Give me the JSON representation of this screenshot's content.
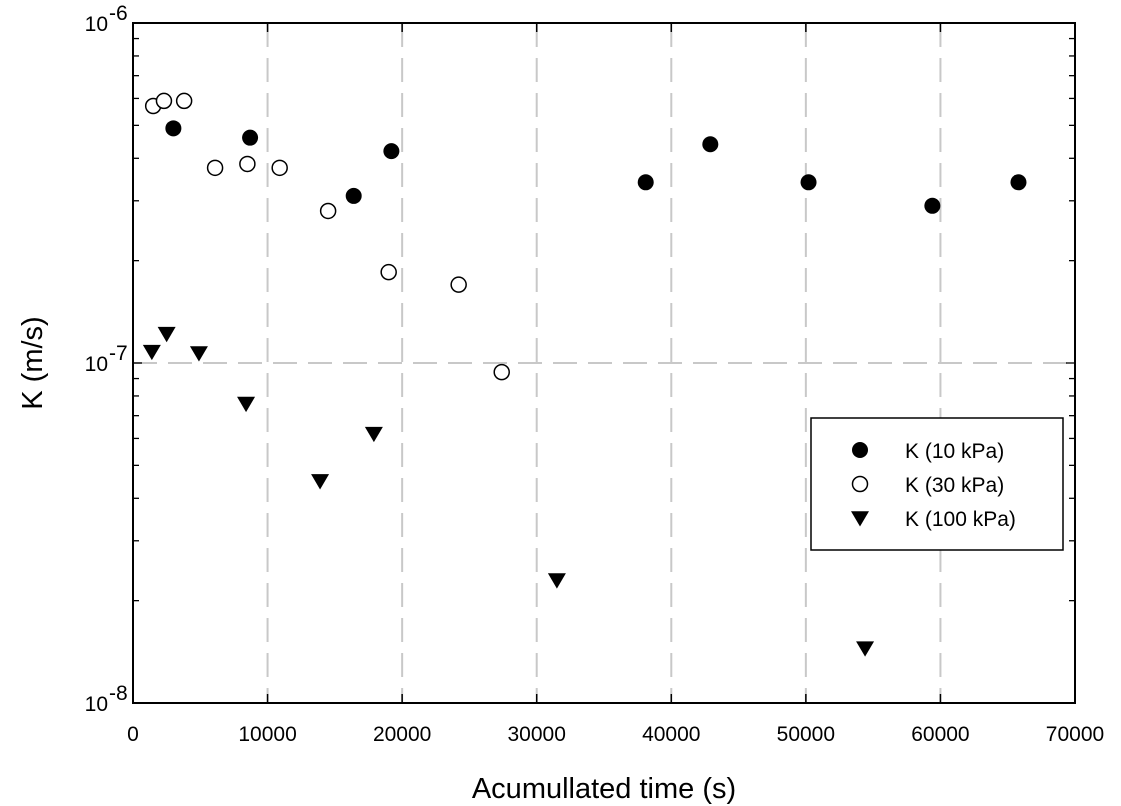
{
  "chart_data": {
    "type": "scatter",
    "title": "",
    "xlabel": "Acumullated time (s)",
    "ylabel": "K (m/s)",
    "xlim": [
      0,
      70000
    ],
    "ylim": [
      1e-08,
      1e-06
    ],
    "yscale": "log",
    "x_ticks": [
      0,
      10000,
      20000,
      30000,
      40000,
      50000,
      60000,
      70000
    ],
    "y_ticks": [
      {
        "value": 1e-06,
        "base": "10",
        "exp": "-6"
      },
      {
        "value": 1e-07,
        "base": "10",
        "exp": "-7"
      },
      {
        "value": 1e-08,
        "base": "10",
        "exp": "-8"
      }
    ],
    "grid": {
      "vertical": true,
      "horizontal": "at 1e-7",
      "style": "dashed",
      "color": "#c8c8c8"
    },
    "legend": {
      "position": "right"
    },
    "series": [
      {
        "name": "K (10 kPa)",
        "marker": "filled-circle",
        "x": [
          3000,
          8700,
          16400,
          19200,
          38100,
          42900,
          50200,
          59400,
          65800
        ],
        "y": [
          4.9e-07,
          4.6e-07,
          3.1e-07,
          4.2e-07,
          3.4e-07,
          4.4e-07,
          3.4e-07,
          2.9e-07,
          3.4e-07
        ]
      },
      {
        "name": "K (30 kPa)",
        "marker": "open-circle",
        "x": [
          1500,
          2300,
          3800,
          6100,
          8500,
          10900,
          14500,
          19000,
          24200,
          27400
        ],
        "y": [
          5.7e-07,
          5.9e-07,
          5.9e-07,
          3.75e-07,
          3.85e-07,
          3.75e-07,
          2.8e-07,
          1.85e-07,
          1.7e-07,
          9.4e-08
        ]
      },
      {
        "name": "K (100 kPa)",
        "marker": "filled-triangle-down",
        "x": [
          1400,
          2500,
          4900,
          8400,
          13900,
          17900,
          31500,
          54400
        ],
        "y": [
          1.08e-07,
          1.22e-07,
          1.07e-07,
          7.6e-08,
          4.5e-08,
          6.2e-08,
          2.3e-08,
          1.45e-08
        ]
      }
    ]
  }
}
